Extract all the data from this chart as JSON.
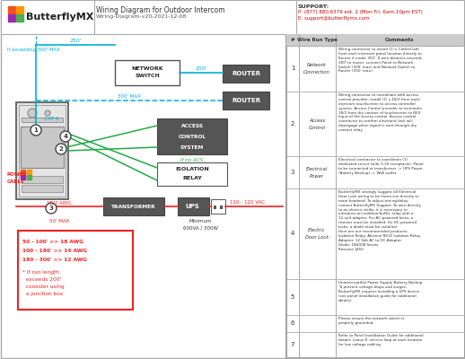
{
  "title": "Wiring Diagram for Outdoor Intercom",
  "subtitle": "Wiring-Diagram-v20-2021-12-08",
  "support_line1": "SUPPORT:",
  "support_line2": "P: (877) 880.6379 ext. 2 (Mon-Fri, 6am-10pm EST)",
  "support_line3": "E: support@butterflymx.com",
  "logo_text": "ButterflyMX",
  "bg_color": "#ffffff",
  "cyan": "#00b0d8",
  "green": "#22aa44",
  "red": "#ee2222",
  "dark": "#333333",
  "gray_box": "#dddddd",
  "dark_box": "#555555",
  "table_rows": [
    {
      "num": "1",
      "type": "Network Connection",
      "comment": "Wiring contractor to install (1) x Cat5e/Cat6\nfrom each intercom panel location directly to\nRouter if under 300'. If wire distance exceeds\n300' to router, connect Panel to Network\nSwitch (300' max) and Network Switch to\nRouter (250' max)."
    },
    {
      "num": "2",
      "type": "Access Control",
      "comment": "Wiring contractor to coordinate with access\ncontrol provider, install (1) x 18/2 from each\nintercom touchscreen to access controller\nsystem. Access Control provider to terminate\n18/2 from dry contact of touchscreen to REX\nInput of the access control. Access control\ncontractor to confirm electronic lock will\ndisengage when signal is sent through dry\ncontact relay."
    },
    {
      "num": "3",
      "type": "Electrical Power",
      "comment": "Electrical contractor to coordinate (1)\ndedicated circuit (with 3-20 receptacle). Panel\nto be connected to transformer -> UPS Power\n(Battery Backup) -> Wall outlet"
    },
    {
      "num": "4",
      "type": "Electric Door Lock",
      "comment": "ButterflyMX strongly suggest all Electrical\nDoor Lock wiring to be home-run directly to\nmain headend. To adjust timing/delay,\ncontact ButterflyMX Support. To wire directly\nto an electric strike, it is necessary to\nintroduce an isolation/buffer relay with a\n12-volt adapter. For AC-powered locks, a\nresistor must be installed; for DC-powered\nlocks, a diode must be installed.\nHere are our recommended products:\nIsolation Relay: Altronix R615 Isolation Relay\nAdapter: 12 Volt AC to DC Adapter\nDiode: 1N4008 Series\nResistor: J450"
    },
    {
      "num": "5",
      "type": "",
      "comment": "Uninterruptible Power Supply Battery Backup.\nTo prevent voltage drops and surges,\nButterflyMX requires installing a UPS device\n(see panel installation guide for additional\ndetails)."
    },
    {
      "num": "6",
      "type": "",
      "comment": "Please ensure the network switch is\nproperly grounded."
    },
    {
      "num": "7",
      "type": "",
      "comment": "Refer to Panel Installation Guide for additional\ndetails. Leave 6' service loop at each location\nfor low voltage cabling."
    }
  ]
}
